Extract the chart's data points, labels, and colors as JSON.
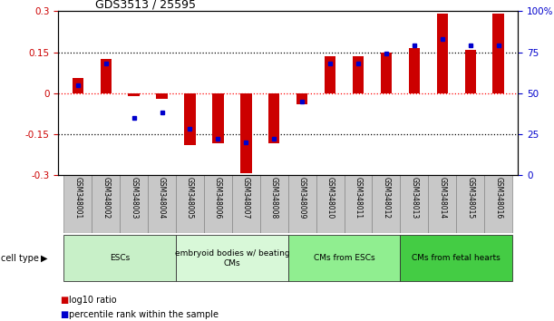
{
  "title": "GDS3513 / 25595",
  "samples": [
    "GSM348001",
    "GSM348002",
    "GSM348003",
    "GSM348004",
    "GSM348005",
    "GSM348006",
    "GSM348007",
    "GSM348008",
    "GSM348009",
    "GSM348010",
    "GSM348011",
    "GSM348012",
    "GSM348013",
    "GSM348014",
    "GSM348015",
    "GSM348016"
  ],
  "log10_ratio": [
    0.055,
    0.125,
    -0.01,
    -0.02,
    -0.19,
    -0.185,
    -0.295,
    -0.185,
    -0.04,
    0.135,
    0.135,
    0.15,
    0.165,
    0.29,
    0.16,
    0.29
  ],
  "percentile_rank": [
    55,
    68,
    35,
    38,
    28,
    22,
    20,
    22,
    45,
    68,
    68,
    74,
    79,
    83,
    79,
    79
  ],
  "cell_types": [
    {
      "label": "ESCs",
      "start": 0,
      "end": 4,
      "color": "#c8f0c8"
    },
    {
      "label": "embryoid bodies w/ beating\nCMs",
      "start": 4,
      "end": 8,
      "color": "#d8f8d8"
    },
    {
      "label": "CMs from ESCs",
      "start": 8,
      "end": 12,
      "color": "#90ee90"
    },
    {
      "label": "CMs from fetal hearts",
      "start": 12,
      "end": 16,
      "color": "#44cc44"
    }
  ],
  "ylim_left": [
    -0.3,
    0.3
  ],
  "ylim_right": [
    0,
    100
  ],
  "yticks_left": [
    -0.3,
    -0.15,
    0,
    0.15,
    0.3
  ],
  "yticks_right": [
    0,
    25,
    50,
    75,
    100
  ],
  "bar_color": "#cc0000",
  "dot_color": "#0000cc",
  "bg_color": "#ffffff",
  "left_label_color": "#cc0000",
  "right_label_color": "#0000cc",
  "legend_bar_label": "log10 ratio",
  "legend_dot_label": "percentile rank within the sample",
  "cell_type_label": "cell type",
  "xticklabel_bg": "#c8c8c8"
}
